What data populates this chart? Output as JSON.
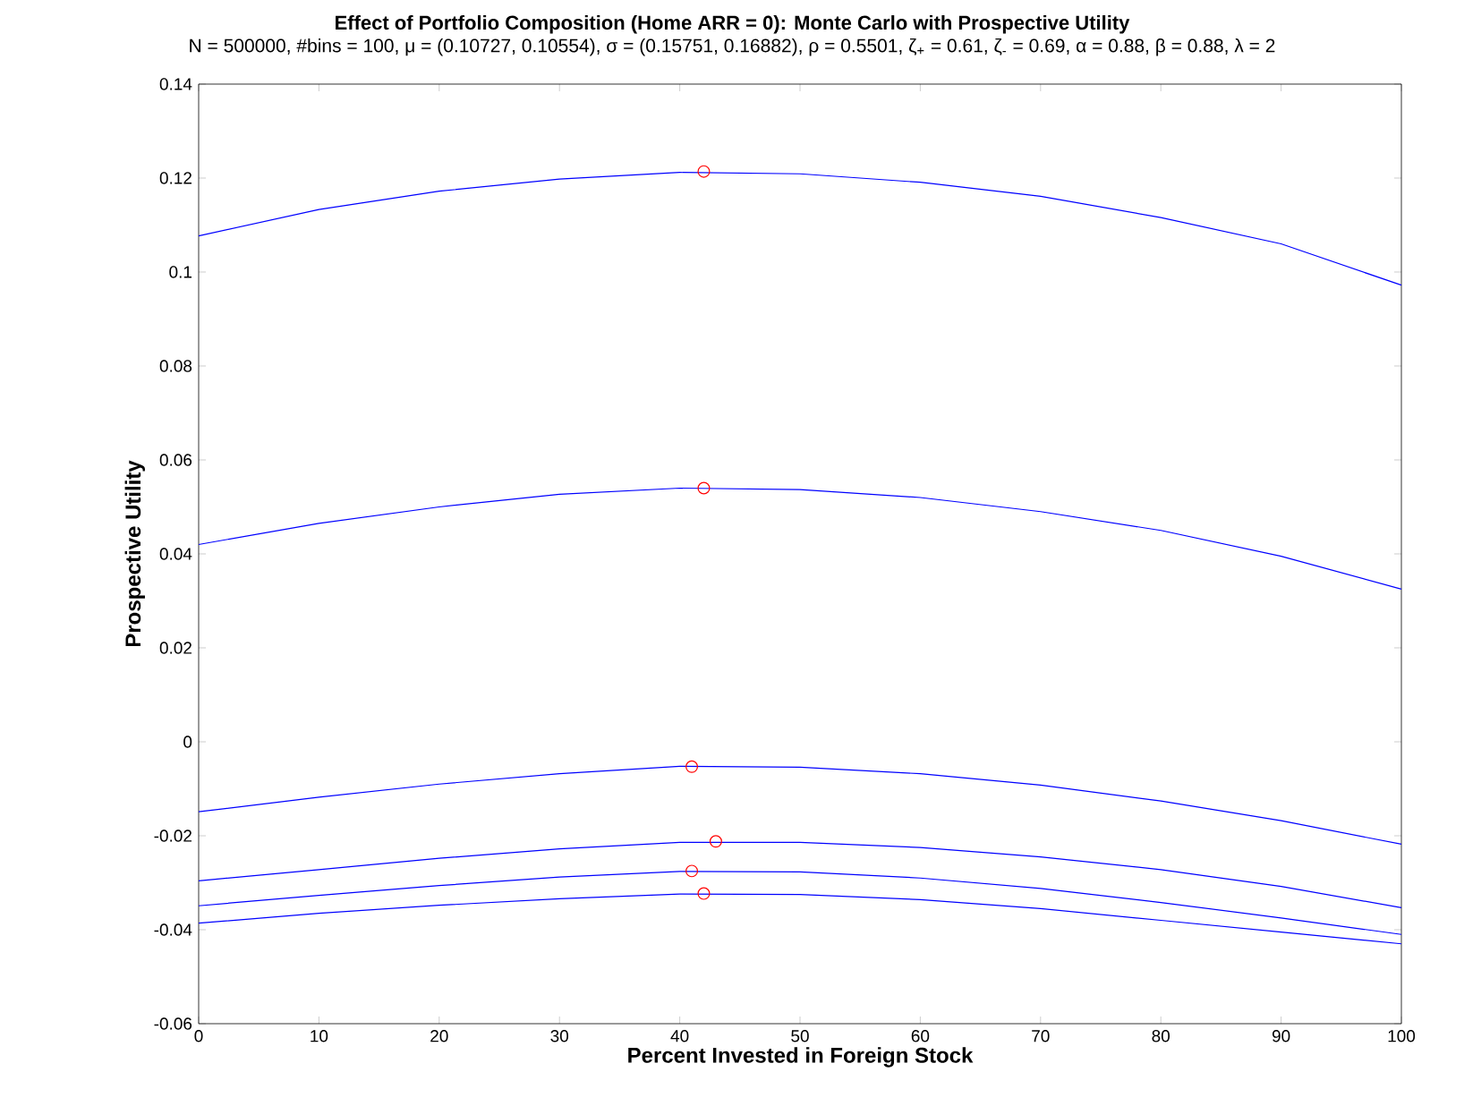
{
  "chart_data": {
    "type": "line",
    "title": "Effect of Portfolio Composition (Home ARR = 0): Monte Carlo with Prospective Utility",
    "subtitle": "N = 500000, #bins = 100, μ = (0.10727, 0.10554), σ = (0.15751, 0.16882), ρ = 0.5501, ζ$_{+}$ = 0.61, ζ$_{-}$ = 0.69, α = 0.88, β = 0.88, λ = 2",
    "xlabel": "Percent Invested in Foreign Stock",
    "ylabel": "Prospective Utility",
    "x": [
      0,
      10,
      20,
      30,
      40,
      50,
      60,
      70,
      80,
      90,
      100
    ],
    "series": [
      {
        "color": "#0000ff",
        "values": [
          0.1077,
          0.1133,
          0.1172,
          0.1198,
          0.1212,
          0.1209,
          0.1191,
          0.1161,
          0.1116,
          0.106,
          0.0972
        ]
      },
      {
        "color": "#0000ff",
        "values": [
          0.042,
          0.0465,
          0.05,
          0.0527,
          0.054,
          0.0537,
          0.052,
          0.049,
          0.045,
          0.0395,
          0.0325
        ]
      },
      {
        "color": "#0000ff",
        "values": [
          -0.0149,
          -0.0118,
          -0.009,
          -0.0068,
          -0.0052,
          -0.0054,
          -0.0068,
          -0.0092,
          -0.0126,
          -0.0168,
          -0.0218
        ]
      },
      {
        "color": "#0000ff",
        "values": [
          -0.0296,
          -0.0272,
          -0.0248,
          -0.0228,
          -0.0214,
          -0.0214,
          -0.0225,
          -0.0245,
          -0.0272,
          -0.0308,
          -0.0353
        ]
      },
      {
        "color": "#0000ff",
        "values": [
          -0.0349,
          -0.0327,
          -0.0306,
          -0.0288,
          -0.0276,
          -0.0277,
          -0.029,
          -0.0312,
          -0.0342,
          -0.0375,
          -0.041
        ]
      },
      {
        "color": "#0000ff",
        "values": [
          -0.0386,
          -0.0365,
          -0.0348,
          -0.0334,
          -0.0324,
          -0.0325,
          -0.0336,
          -0.0355,
          -0.038,
          -0.0405,
          -0.043
        ]
      },
      {
        "type": "scatter",
        "marker": "circle",
        "color": "#ff0000",
        "x": [
          42,
          42,
          41,
          43,
          41,
          42
        ],
        "values": [
          0.1214,
          0.054,
          -0.0053,
          -0.0212,
          -0.0275,
          -0.0323
        ]
      }
    ],
    "xlim": [
      0,
      100
    ],
    "ylim": [
      -0.06,
      0.14
    ],
    "xticks": [
      0,
      10,
      20,
      30,
      40,
      50,
      60,
      70,
      80,
      90,
      100
    ],
    "yticks": [
      -0.06,
      -0.04,
      -0.02,
      0,
      0.02,
      0.04,
      0.06,
      0.08,
      0.1,
      0.12,
      0.14
    ]
  }
}
